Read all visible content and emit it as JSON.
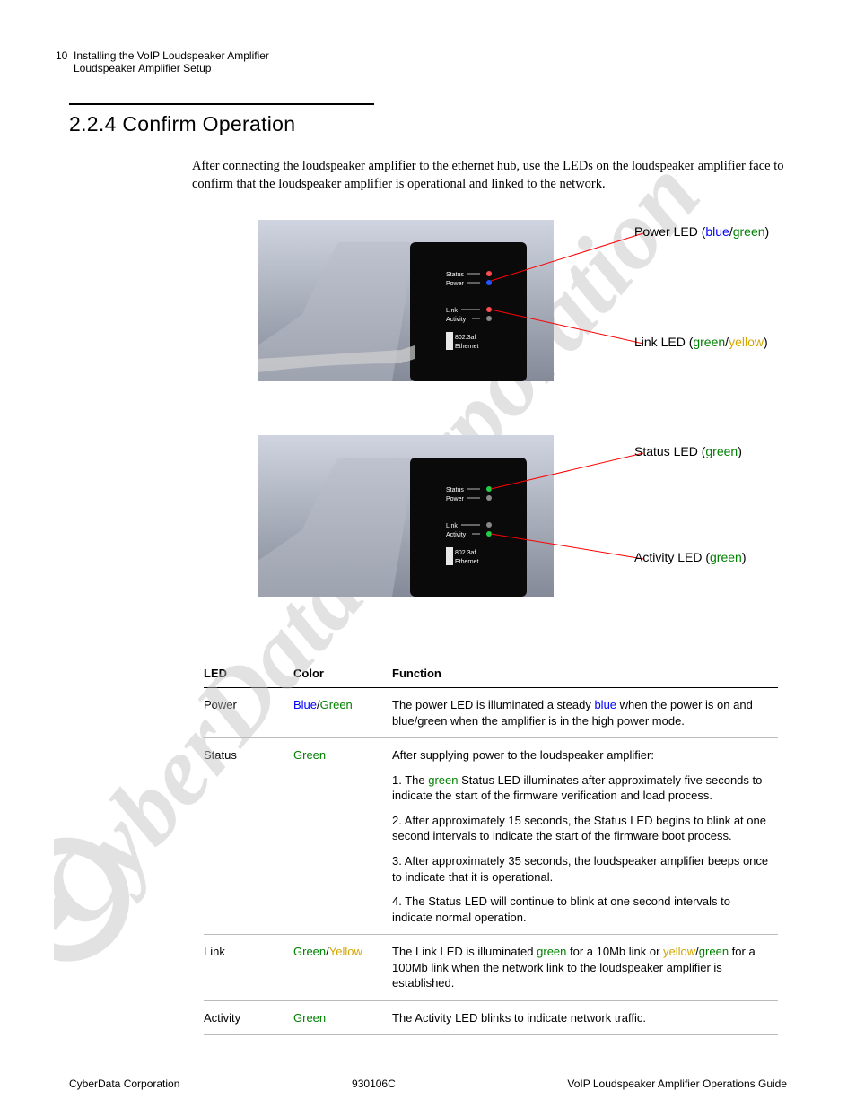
{
  "page": {
    "number": "10",
    "header_line1": "Installing the VoIP Loudspeaker Amplifier",
    "header_line2": "Loudspeaker Amplifier Setup",
    "section_heading": "2.2.4 Confirm Operation",
    "intro": "After connecting the loudspeaker amplifier to the ethernet hub, use the LEDs on the loudspeaker amplifier face to confirm that the loudspeaker amplifier is operational and linked to the network."
  },
  "callouts": {
    "power": {
      "label": "Power LED (",
      "c1": "blue",
      "slash": "/",
      "c2": "green",
      "close": ")"
    },
    "link": {
      "label": "Link LED (",
      "c1": "green",
      "slash": "/",
      "c2": "yellow",
      "close": ")"
    },
    "status": {
      "label": "Status LED (",
      "c1": "green",
      "close": ")"
    },
    "activity": {
      "label": "Activity LED (",
      "c1": "green",
      "close": ")"
    }
  },
  "device_labels": {
    "status": "Status",
    "power": "Power",
    "link": "Link",
    "activity": "Activity",
    "eth1": "802.3af",
    "eth2": "Ethernet"
  },
  "table": {
    "headers": {
      "led": "LED",
      "color": "Color",
      "function": "Function"
    },
    "rows": [
      {
        "led": "Power",
        "color_parts": [
          {
            "text": "Blue",
            "class": "c-blue"
          },
          {
            "text": "/",
            "class": ""
          },
          {
            "text": "Green",
            "class": "c-green"
          }
        ],
        "function_parts": [
          {
            "segments": [
              {
                "text": "The power LED is illuminated a steady "
              },
              {
                "text": "blue",
                "class": "c-blue"
              },
              {
                "text": " when the power is on and blue/green when the amplifier is in the high power mode."
              }
            ]
          }
        ]
      },
      {
        "led": "Status",
        "color_parts": [
          {
            "text": "Green",
            "class": "c-green"
          }
        ],
        "function_parts": [
          {
            "segments": [
              {
                "text": "After supplying power to the loudspeaker amplifier:"
              }
            ]
          },
          {
            "segments": [
              {
                "text": "1. The "
              },
              {
                "text": "green",
                "class": "c-green"
              },
              {
                "text": " Status LED illuminates after approximately five seconds to indicate the start of the firmware verification and load process."
              }
            ]
          },
          {
            "segments": [
              {
                "text": "2. After approximately 15 seconds, the Status LED begins to blink at one second intervals to indicate the start of the firmware boot process."
              }
            ]
          },
          {
            "segments": [
              {
                "text": "3. After approximately 35 seconds, the loudspeaker amplifier beeps once to indicate that it is operational."
              }
            ]
          },
          {
            "segments": [
              {
                "text": "4. The Status LED will continue to blink at one second intervals to indicate normal operation."
              }
            ]
          }
        ]
      },
      {
        "led": "Link",
        "color_parts": [
          {
            "text": "Green",
            "class": "c-green"
          },
          {
            "text": "/",
            "class": ""
          },
          {
            "text": "Yellow",
            "class": "c-yellow"
          }
        ],
        "function_parts": [
          {
            "segments": [
              {
                "text": "The Link LED is illuminated "
              },
              {
                "text": "green",
                "class": "c-green"
              },
              {
                "text": " for a 10Mb link or "
              },
              {
                "text": "yellow",
                "class": "c-yellow"
              },
              {
                "text": "/"
              },
              {
                "text": "green",
                "class": "c-green"
              },
              {
                "text": " for a 100Mb link when the network link to the loudspeaker amplifier is established."
              }
            ]
          }
        ]
      },
      {
        "led": "Activity",
        "color_parts": [
          {
            "text": "Green",
            "class": "c-green"
          }
        ],
        "function_parts": [
          {
            "segments": [
              {
                "text": "The Activity LED blinks to indicate network traffic."
              }
            ]
          }
        ]
      }
    ]
  },
  "footer": {
    "left": "CyberData Corporation",
    "center": "930106C",
    "right": "VoIP Loudspeaker Amplifier Operations Guide"
  },
  "colors": {
    "blue": "#0000ff",
    "green": "#008000",
    "yellow": "#d4a600",
    "callout_line": "#ff0000",
    "text": "#000000"
  }
}
